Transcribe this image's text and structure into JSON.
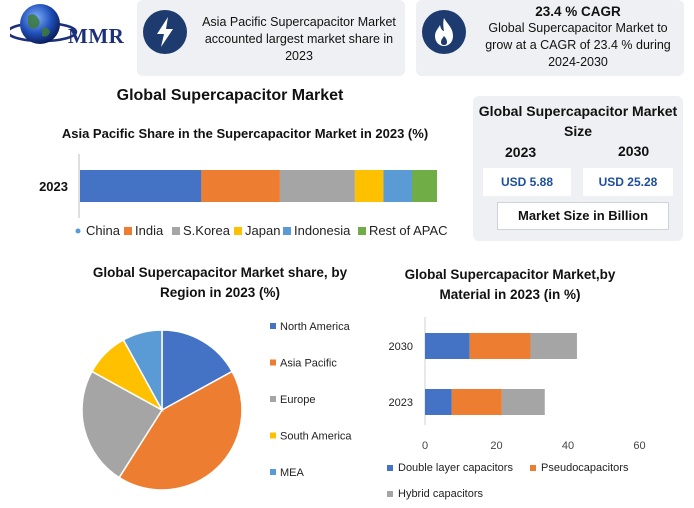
{
  "brand": {
    "logo_text": "MMR"
  },
  "cards": {
    "share": {
      "icon": "lightning-icon",
      "text": "Asia Pacific Supercapacitor Market accounted largest market share in 2023"
    },
    "cagr": {
      "icon": "flame-icon",
      "title": "23.4 % CAGR",
      "text": "Global Supercapacitor Market to grow at a CAGR of 23.4 % during 2024-2030"
    }
  },
  "main_title": "Global Supercapacitor Market",
  "market_size": {
    "title": "Global Supercapacitor Market Size",
    "year1": "2023",
    "year2": "2030",
    "value1": "USD 5.88",
    "value2": "USD 25.28",
    "note": "Market Size in Billion"
  },
  "colors": {
    "blue": "#4472c4",
    "orange": "#ed7d31",
    "gray": "#a5a5a5",
    "yellow": "#ffc000",
    "lightblue": "#5b9bd5",
    "green": "#70ad47",
    "navy": "#1d3b6e"
  },
  "chart_data": [
    {
      "type": "bar",
      "orientation": "horizontal-stacked",
      "title": "Asia Pacific Share in the Supercapacitor Market in 2023 (%)",
      "categories": [
        "2023"
      ],
      "series": [
        {
          "name": "China",
          "values": [
            34
          ]
        },
        {
          "name": "India",
          "values": [
            22
          ]
        },
        {
          "name": "S.Korea",
          "values": [
            21
          ]
        },
        {
          "name": "Japan",
          "values": [
            8
          ]
        },
        {
          "name": "Indonesia",
          "values": [
            8
          ]
        },
        {
          "name": "Rest of APAC",
          "values": [
            7
          ]
        }
      ],
      "legend": "bottom",
      "grid": false
    },
    {
      "type": "pie",
      "title": "Global Supercapacitor Market share, by Region in 2023  (%)",
      "labels": [
        "North America",
        "Asia Pacific",
        "Europe",
        "South America",
        "MEA"
      ],
      "values": [
        17,
        42,
        24,
        9,
        8
      ],
      "legend": "right"
    },
    {
      "type": "bar",
      "orientation": "horizontal-stacked",
      "title": "Global Supercapacitor Market,by Material in 2023 (in %)",
      "categories": [
        "2030",
        "2023"
      ],
      "series": [
        {
          "name": "Double layer capacitors",
          "values": [
            12.5,
            7.5
          ]
        },
        {
          "name": "Pseudocapacitors",
          "values": [
            17,
            14
          ]
        },
        {
          "name": "Hybrid capacitors",
          "values": [
            13,
            12
          ]
        }
      ],
      "xlim": [
        0,
        60
      ],
      "xticks": [
        0,
        20,
        40,
        60
      ],
      "legend": "bottom",
      "grid": false
    }
  ]
}
